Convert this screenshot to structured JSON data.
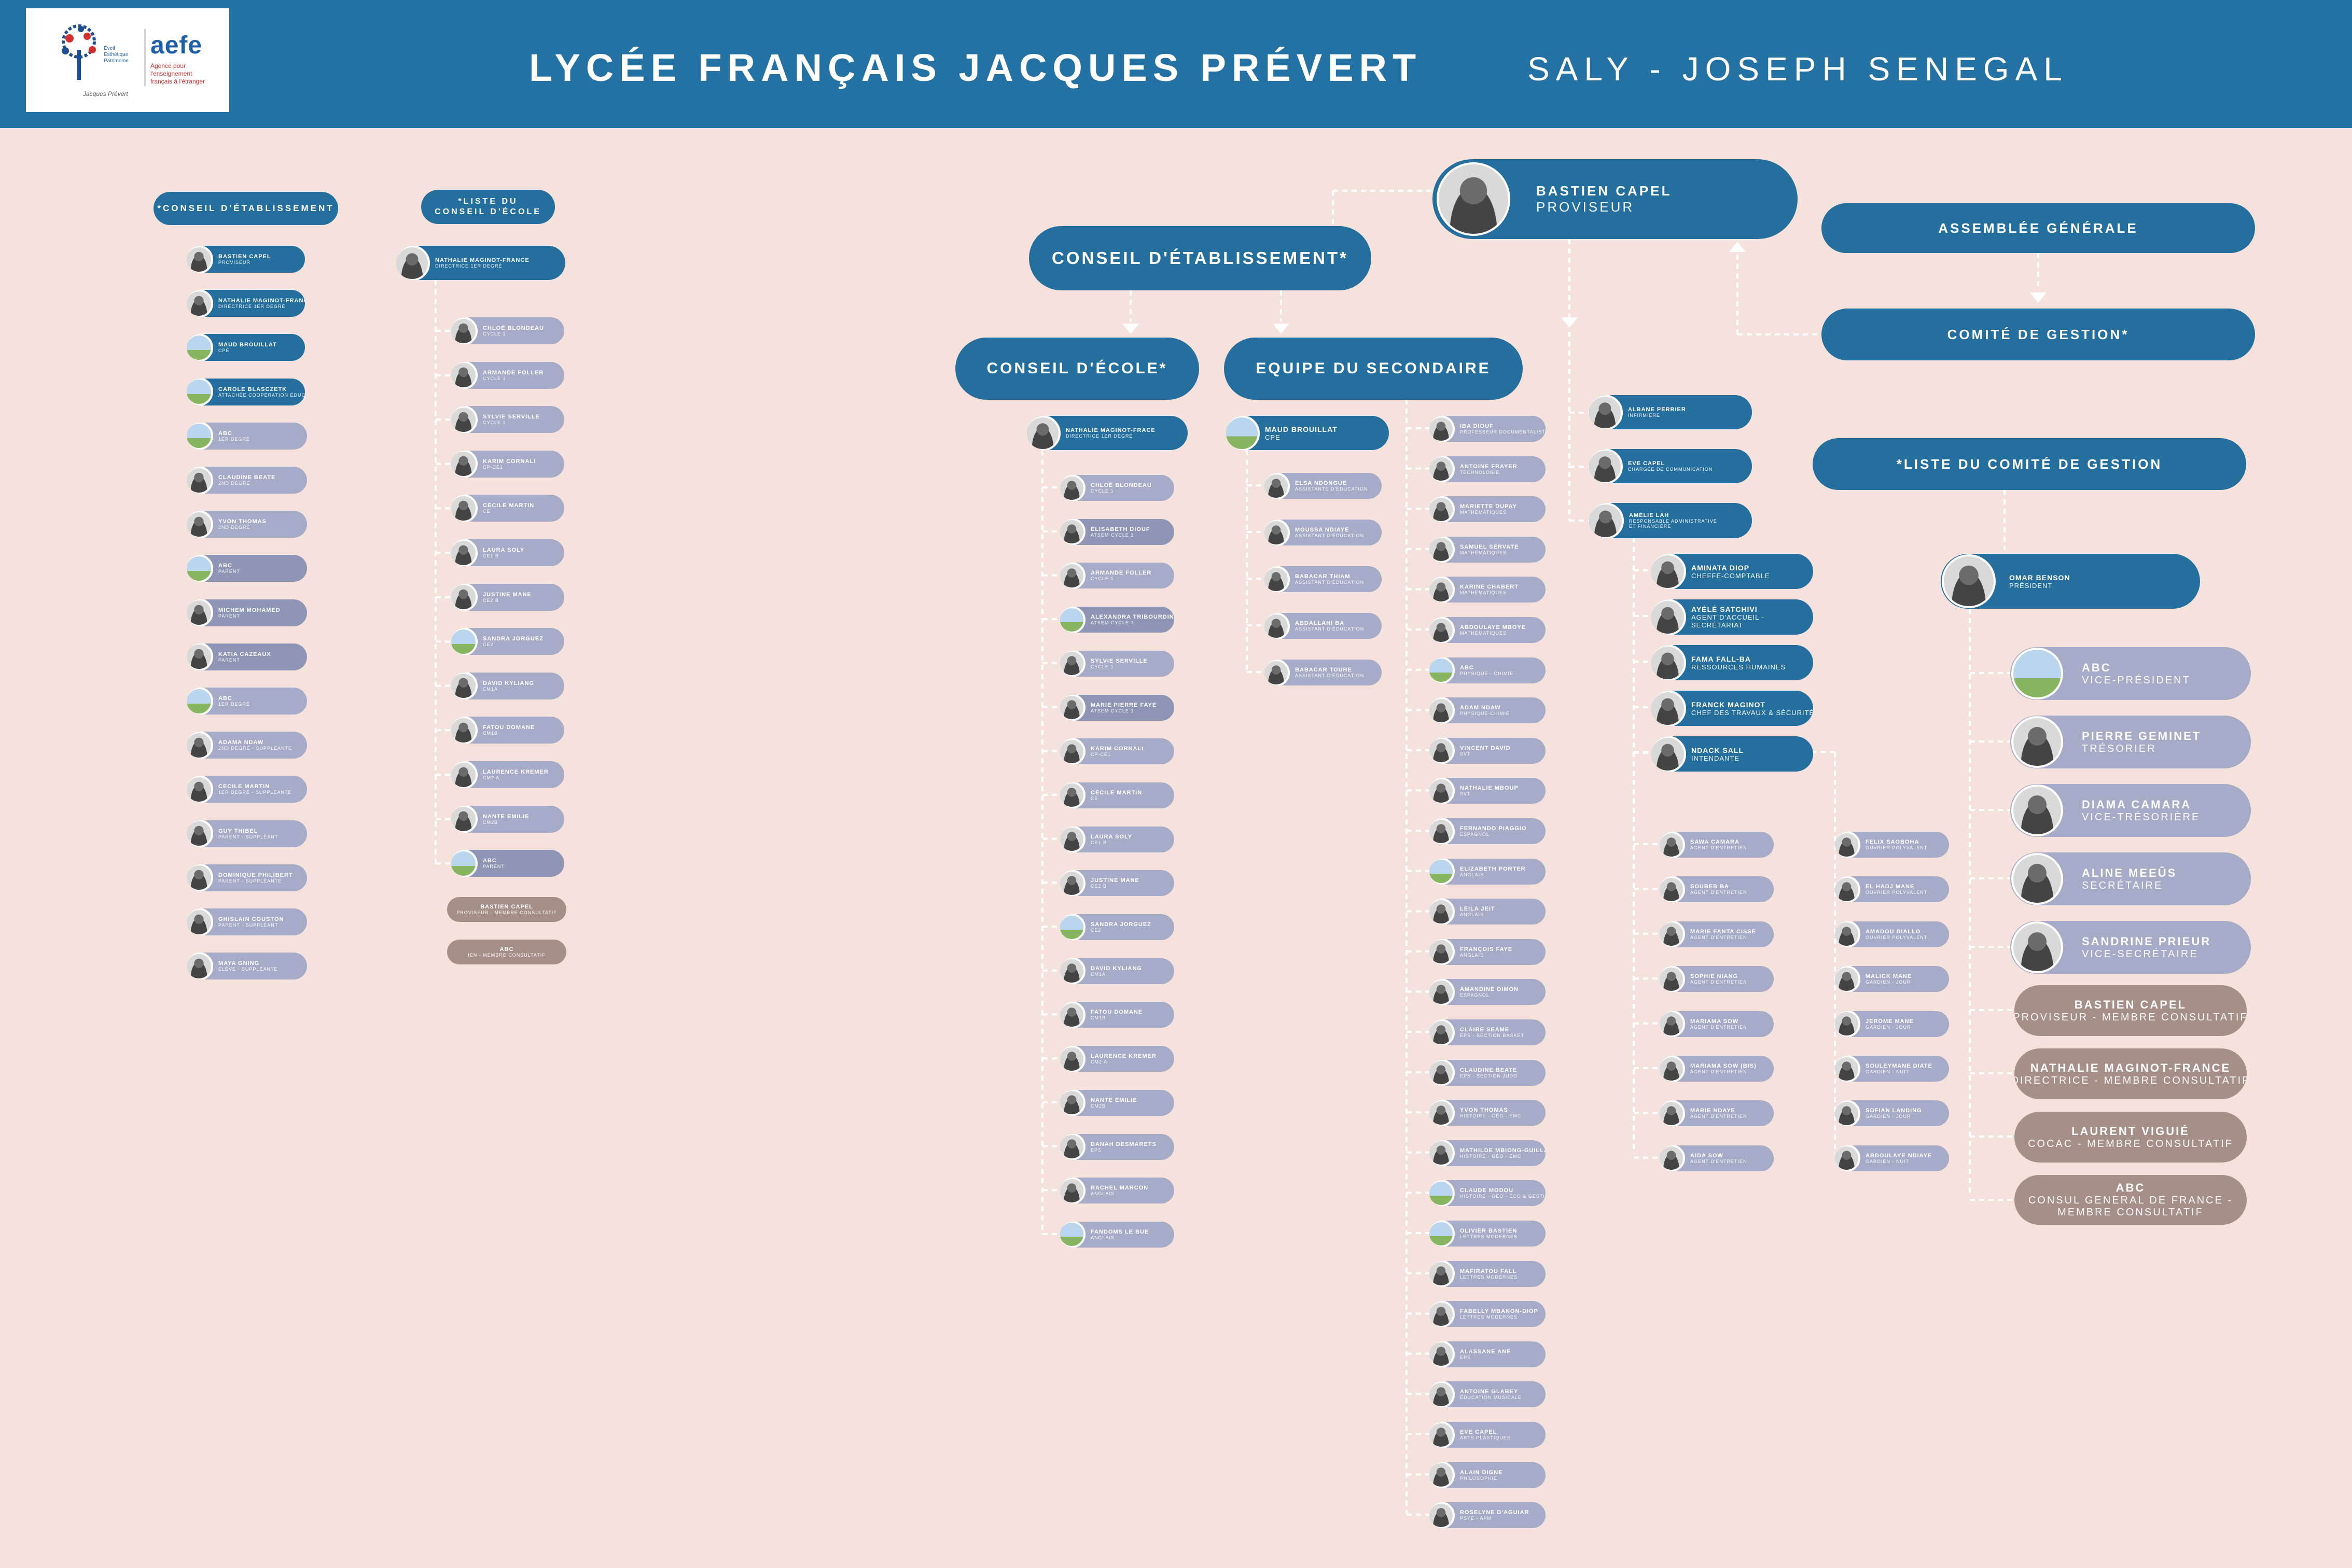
{
  "header": {
    "title": "LYCÉE FRANÇAIS JACQUES PRÉVERT",
    "subtitle": "SALY - JOSEPH    SENEGAL",
    "logo_school_sig": "Jacques Prévert",
    "logo_aefe": "aefe",
    "logo_aefe_sub": "Agence pour l'enseignement français à l'étranger",
    "logo_mission": "Éveil Esthétique Patrimoine"
  },
  "colors": {
    "header": "#2471a3",
    "background": "#f6e2dc",
    "node_blue": "#246f9e",
    "node_lavender": "#a6acc7",
    "node_taupe": "#a78f89"
  },
  "top": {
    "proviseur": {
      "name": "BASTIEN CAPEL",
      "role": "PROVISEUR"
    },
    "conseil_etab": "CONSEIL D'ÉTABLISSEMENT*",
    "conseil_ecole": "CONSEIL D'ÉCOLE*",
    "equipe_sec": "EQUIPE DU SECONDAIRE",
    "assemblee": "ASSEMBLÉE GÉNÉRALE",
    "comite": "COMITÉ DE GESTION*",
    "liste_comite": "*LISTE DU COMITÉ DE GESTION"
  },
  "col1": {
    "title": "*CONSEIL D'ÉTABLISSEMENT",
    "items": [
      {
        "name": "BASTIEN CAPEL",
        "role": "PROVISEUR"
      },
      {
        "name": "NATHALIE MAGINOT-FRANCE",
        "role": "DIRECTRICE 1ER DEGRÉ"
      },
      {
        "name": "MAUD BROUILLAT",
        "role": "CPE"
      },
      {
        "name": "CAROLE BLASCZETK",
        "role": "ATTACHÉE COOPÉRATION ÉDUCATIVE"
      },
      {
        "name": "ABC",
        "role": "1ER DEGRÉ"
      },
      {
        "name": "CLAUDINE BEATE",
        "role": "2ND DEGRÉ"
      },
      {
        "name": "YVON THOMAS",
        "role": "2ND DEGRÉ"
      },
      {
        "name": "ABC",
        "role": "PARENT"
      },
      {
        "name": "MICHEM MOHAMED",
        "role": "PARENT"
      },
      {
        "name": "KATIA CAZEAUX",
        "role": "PARENT"
      },
      {
        "name": "ABC",
        "role": "1ER DEGRÉ"
      },
      {
        "name": "ADAMA NDAW",
        "role": "2ND DEGRÉ - SUPPLÉANTE"
      },
      {
        "name": "CÉCILE MARTIN",
        "role": "1ER DEGRÉ - SUPPLÉANTE"
      },
      {
        "name": "GUY THIBEL",
        "role": "PARENT - SUPPLÉANT"
      },
      {
        "name": "DOMINIQUE PHILIBERT",
        "role": "PARENT - SUPPLÉANTE"
      },
      {
        "name": "GHISLAIN COUSTON",
        "role": "PARENT - SUPPLÉANT"
      },
      {
        "name": "MAYA GNING",
        "role": "ÉLÈVE - SUPPLÉANTE"
      }
    ]
  },
  "col2": {
    "title_1": "*LISTE DU",
    "title_2": "CONSEIL D'ÉCOLE",
    "head": {
      "name": "NATHALIE MAGINOT-FRANCE",
      "role": "DIRECTRICE 1ER DEGRÉ"
    },
    "items": [
      {
        "name": "CHLOÉ BLONDEAU",
        "role": "CYCLE 1"
      },
      {
        "name": "ARMANDE FOLLER",
        "role": "CYCLE 1"
      },
      {
        "name": "SYLVIE SERVILLE",
        "role": "CYCLE 1"
      },
      {
        "name": "KARIM CORNALI",
        "role": "CP-CE1"
      },
      {
        "name": "CÉCILE MARTIN",
        "role": "CE"
      },
      {
        "name": "LAURA SOLY",
        "role": "CE1 B"
      },
      {
        "name": "JUSTINE MANE",
        "role": "CE2 B"
      },
      {
        "name": "SANDRA JORGUEZ",
        "role": "CE2"
      },
      {
        "name": "DAVID KYLIANG",
        "role": "CM1A"
      },
      {
        "name": "FATOU DOMANE",
        "role": "CM1B"
      },
      {
        "name": "LAURENCE KREMER",
        "role": "CM2 A"
      },
      {
        "name": "NANTE ÉMILIE",
        "role": "CM2B"
      },
      {
        "name": "ABC",
        "role": "PARENT"
      }
    ],
    "extras": [
      {
        "name": "BASTIEN CAPEL",
        "role": "PROVISEUR - MEMBRE CONSULTATIF"
      },
      {
        "name": "ABC",
        "role": "IEN - MEMBRE CONSULTATIF"
      }
    ]
  },
  "ecole": {
    "head": {
      "name": "NATHALIE MAGINOT-FRACE",
      "role": "DIRECTRICE 1ER DEGRÉ"
    },
    "items": [
      {
        "name": "CHLOÉ BLONDEAU",
        "role": "CYCLE 1"
      },
      {
        "name": "ÉLISABETH DIOUF",
        "role": "ATSEM CYCLE 1"
      },
      {
        "name": "ARMANDE FOLLER",
        "role": "CYCLE 1"
      },
      {
        "name": "ALEXANDRA TRIBOURDIN",
        "role": "ATSEM CYCLE 1"
      },
      {
        "name": "SYLVIE SERVILLE",
        "role": "CYCLE 1"
      },
      {
        "name": "MARIE PIERRE FAYE",
        "role": "ATSEM CYCLE 1"
      },
      {
        "name": "KARIM CORNALI",
        "role": "CP-CE1"
      },
      {
        "name": "CÉCILE MARTIN",
        "role": "CE"
      },
      {
        "name": "LAURA SOLY",
        "role": "CE1 B"
      },
      {
        "name": "JUSTINE MANE",
        "role": "CE2 B"
      },
      {
        "name": "SANDRA JORGUEZ",
        "role": "CE2"
      },
      {
        "name": "DAVID KYLIANG",
        "role": "CM1A"
      },
      {
        "name": "FATOU DOMANE",
        "role": "CM1B"
      },
      {
        "name": "LAURENCE KREMER",
        "role": "CM2 A"
      },
      {
        "name": "NANTE ÉMILIE",
        "role": "CM2B"
      },
      {
        "name": "DANAH DESMARETS",
        "role": "EPS"
      },
      {
        "name": "RACHEL MARCON",
        "role": "ANGLAIS"
      },
      {
        "name": "FANDOMS LE BUE",
        "role": "ANGLAIS"
      }
    ]
  },
  "cpe": {
    "head": {
      "name": "MAUD BROUILLAT",
      "role": "CPE"
    },
    "items": [
      {
        "name": "ELSA NDONGUE",
        "role": "ASSISTANTE D'ÉDUCATION"
      },
      {
        "name": "MOUSSA NDIAYE",
        "role": "ASSISTANT D'ÉDUCATION"
      },
      {
        "name": "BABACAR THIAM",
        "role": "ASSISTANT D'ÉDUCATION"
      },
      {
        "name": "ABDALLAHI BA",
        "role": "ASSISTANT D'ÉDUCATION"
      },
      {
        "name": "BABACAR TOURE",
        "role": "ASSISTANT D'ÉDUCATION"
      }
    ]
  },
  "teachers": [
    {
      "name": "IBA DIOUF",
      "role": "PROFESSEUR DOCUMENTALISTE"
    },
    {
      "name": "ANTOINE FRAYER",
      "role": "TECHNOLOGIE"
    },
    {
      "name": "MARIETTE DUPAY",
      "role": "MATHÉMATIQUES"
    },
    {
      "name": "SAMUEL SERVATE",
      "role": "MATHÉMATIQUES"
    },
    {
      "name": "KARINE CHABERT",
      "role": "MATHÉMATIQUES"
    },
    {
      "name": "ABDOULAYE MBOYE",
      "role": "MATHÉMATIQUES"
    },
    {
      "name": "ABC",
      "role": "PHYSIQUE - CHIMIE"
    },
    {
      "name": "ADAM NDAW",
      "role": "PHYSIQUE-CHIMIE"
    },
    {
      "name": "VINCENT DAVID",
      "role": "SVT"
    },
    {
      "name": "NATHALIE MBOUP",
      "role": "SVT"
    },
    {
      "name": "FERNANDO PIAGGIO",
      "role": "ESPAGNOL"
    },
    {
      "name": "ELIZABETH PORTER",
      "role": "ANGLAIS"
    },
    {
      "name": "LÉILA JEIT",
      "role": "ANGLAIS"
    },
    {
      "name": "FRANÇOIS FAYE",
      "role": "ANGLAIS"
    },
    {
      "name": "AMANDINE DIMON",
      "role": "ESPAGNOL"
    },
    {
      "name": "CLAIRE SEAME",
      "role": "EPS - SECTION BASKET"
    },
    {
      "name": "CLAUDINE BEATE",
      "role": "EPS - SECTION JUDO"
    },
    {
      "name": "YVON THOMAS",
      "role": "HISTOIRE - GÉO - EMC"
    },
    {
      "name": "MATHILDE MBIONG-GUILLAUME",
      "role": "HISTOIRE - GÉO - EMC"
    },
    {
      "name": "CLAUDE MODOU",
      "role": "HISTOIRE - GÉO - ÉCO & GESTION"
    },
    {
      "name": "OLIVIER BASTIEN",
      "role": "LETTRES MODERNES"
    },
    {
      "name": "MAFIRATOU FALL",
      "role": "LETTRES MODERNES"
    },
    {
      "name": "FABELLY MBANON-DIOP",
      "role": "LETTRES MODERNES"
    },
    {
      "name": "ALASSANE ANE",
      "role": "EPS"
    },
    {
      "name": "ANTOINE GLABEY",
      "role": "ÉDUCATION MUSICALE"
    },
    {
      "name": "EVE CAPEL",
      "role": "ARTS PLASTIQUES"
    },
    {
      "name": "ALAIN DIGNE",
      "role": "PHILOSOPHIE"
    },
    {
      "name": "ROSELYNE D'AGUIAR",
      "role": "PSYE - APM"
    }
  ],
  "staff_direct": [
    {
      "name": "ALBANE PERRIER",
      "role": "INFIRMIÈRE"
    },
    {
      "name": "EVE CAPEL",
      "role": "CHARGÉE DE COMMUNICATION"
    },
    {
      "name": "AMÉLIE LAH",
      "role": "RESPONSABLE ADMINISTRATIVE",
      "role2": "ET FINANCIÈRE"
    }
  ],
  "admin": [
    {
      "name": "AMINATA DIOP",
      "role": "CHEFFE-COMPTABLE"
    },
    {
      "name": "AYÉLÉ SATCHIVI",
      "role": "AGENT D'ACCUEIL -",
      "role2": "SECRÉTARIAT"
    },
    {
      "name": "FAMA FALL-BA",
      "role": "RESSOURCES HUMAINES"
    },
    {
      "name": "FRANCK MAGINOT",
      "role": "CHEF DES TRAVAUX & SÉCURITÉ"
    },
    {
      "name": "NDACK SALL",
      "role": "INTENDANTE"
    }
  ],
  "maint_left": [
    {
      "name": "SAWA CAMARA",
      "role": "AGENT D'ENTRETIEN"
    },
    {
      "name": "SOUBEB BA",
      "role": "AGENT D'ENTRETIEN"
    },
    {
      "name": "MARIE FANTA CISSÉ",
      "role": "AGENT D'ENTRETIEN"
    },
    {
      "name": "SOPHIE NIANG",
      "role": "AGENT D'ENTRETIEN"
    },
    {
      "name": "MARIAMA SOW",
      "role": "AGENT D'ENTRETIEN"
    },
    {
      "name": "MARIAMA SOW (BIS)",
      "role": "AGENT D'ENTRETIEN"
    },
    {
      "name": "MARIE NDAYE",
      "role": "AGENT D'ENTRETIEN"
    },
    {
      "name": "AIDA SOW",
      "role": "AGENT D'ENTRETIEN"
    }
  ],
  "maint_right": [
    {
      "name": "FELIX SAGBOHA",
      "role": "OUVRIER POLYVALENT"
    },
    {
      "name": "EL HADJ MANE",
      "role": "OUVRIER POLYVALENT"
    },
    {
      "name": "AMADOU DIALLO",
      "role": "OUVRIER POLYVALENT"
    },
    {
      "name": "MALICK MANE",
      "role": "GARDIEN - JOUR"
    },
    {
      "name": "JÉRÔME MANE",
      "role": "GARDIEN - JOUR"
    },
    {
      "name": "SOULEYMANE DIATE",
      "role": "GARDIEN - NUIT"
    },
    {
      "name": "SOFIAN LANDING",
      "role": "GARDIEN - JOUR"
    },
    {
      "name": "ABDOULAYE NDIAYE",
      "role": "GARDIEN - NUIT"
    }
  ],
  "comite_list": {
    "president": {
      "name": "OMAR BENSON",
      "role": "PRÉSIDENT"
    },
    "members": [
      {
        "name": "ABC",
        "role": "VICE-PRÉSIDENT"
      },
      {
        "name": "PIERRE GEMINET",
        "role": "TRÉSORIER"
      },
      {
        "name": "DIAMA CAMARA",
        "role": "VICE-TRÉSORIÈRE"
      },
      {
        "name": "ALINE MEEÛS",
        "role": "SECRÉTAIRE"
      },
      {
        "name": "SANDRINE PRIEUR",
        "role": "VICE-SECRÉTAIRE"
      }
    ],
    "consultative": [
      {
        "name": "BASTIEN CAPEL",
        "role": "PROVISEUR - MEMBRE CONSULTATIF"
      },
      {
        "name": "NATHALIE MAGINOT-FRANCE",
        "role": "DIRECTRICE - MEMBRE CONSULTATIF"
      },
      {
        "name": "LAURENT VIGUIÉ",
        "role": "COCAC - MEMBRE CONSULTATIF"
      },
      {
        "name": "ABC",
        "role": "CONSUL GENERAL DE FRANCE -",
        "role2": "MEMBRE CONSULTATIF"
      }
    ]
  }
}
